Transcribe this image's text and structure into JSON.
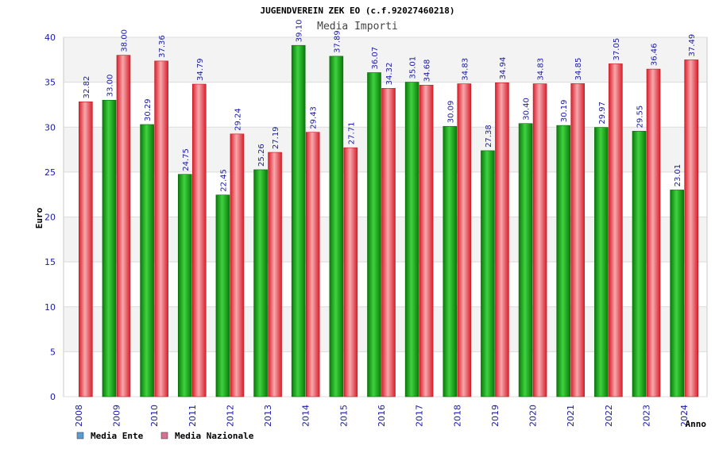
{
  "chart_data": {
    "type": "bar",
    "title": "JUGENDVEREIN ZEK EO (c.f.92027460218)",
    "subtitle": "Media Importi",
    "ylabel": "Euro",
    "xlabel": "Anno",
    "ylim": [
      0,
      40
    ],
    "yticks": [
      "0",
      "5",
      "10",
      "15",
      "20",
      "25",
      "30",
      "35",
      "40"
    ],
    "categories": [
      "2008",
      "2009",
      "2010",
      "2011",
      "2012",
      "2013",
      "2014",
      "2015",
      "2016",
      "2017",
      "2018",
      "2019",
      "2020",
      "2021",
      "2022",
      "2023",
      "2024"
    ],
    "grid": true,
    "legend_position": "bottom-left",
    "series": [
      {
        "name": "Media Ente",
        "legend_color": "#5b9bd5",
        "color": "#1aa31a",
        "values": [
          null,
          33.0,
          30.29,
          24.75,
          22.45,
          25.26,
          39.1,
          37.89,
          36.07,
          35.01,
          30.09,
          27.38,
          30.4,
          30.19,
          29.97,
          29.55,
          23.01
        ],
        "labels": [
          "",
          "33.00",
          "30.29",
          "24.75",
          "22.45",
          "25.26",
          "39.10",
          "37.89",
          "36.07",
          "35.01",
          "30.09",
          "27.38",
          "30.40",
          "30.19",
          "29.97",
          "29.55",
          "23.01"
        ]
      },
      {
        "name": "Media Nazionale",
        "legend_color": "#d87093",
        "color": "#e8323c",
        "values": [
          32.82,
          38.0,
          37.36,
          34.79,
          29.24,
          27.19,
          29.43,
          27.71,
          34.32,
          34.68,
          34.83,
          34.94,
          34.83,
          34.85,
          37.05,
          36.46,
          37.49
        ],
        "labels": [
          "32.82",
          "38.00",
          "37.36",
          "34.79",
          "29.24",
          "27.19",
          "29.43",
          "27.71",
          "34.32",
          "34.68",
          "34.83",
          "34.94",
          "34.83",
          "34.85",
          "37.05",
          "36.46",
          "37.49"
        ]
      }
    ]
  }
}
